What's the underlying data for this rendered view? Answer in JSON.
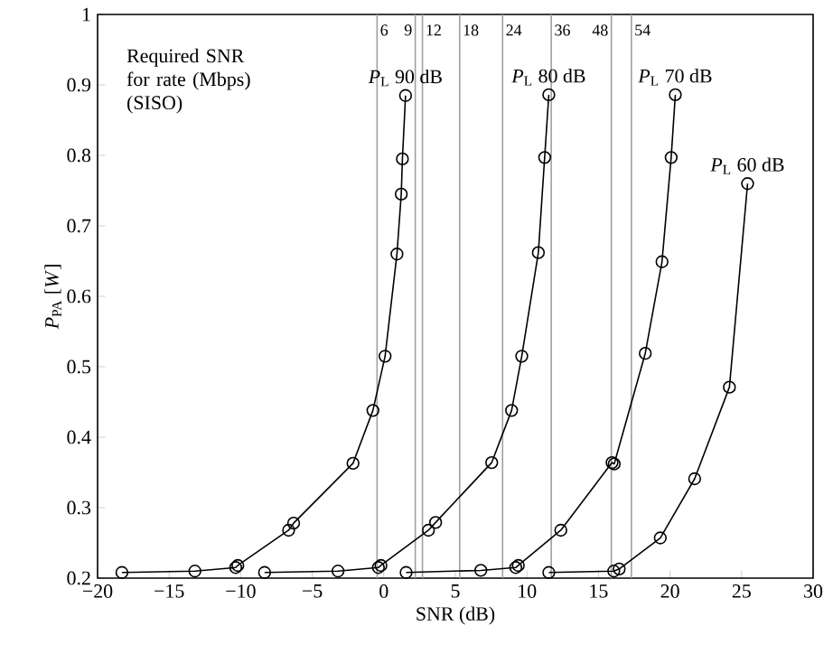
{
  "chart_data": {
    "type": "line",
    "xlabel": "SNR (dB)",
    "ylabel": "*P*$_{PA}$ [*W*]",
    "xlim": [
      -20,
      30
    ],
    "ylim": [
      0.2,
      1
    ],
    "xticks": [
      {
        "value": -20,
        "label": "−20"
      },
      {
        "value": -15,
        "label": "−15"
      },
      {
        "value": -10,
        "label": "−10"
      },
      {
        "value": -5,
        "label": "−5"
      },
      0,
      5,
      10,
      15,
      20,
      25,
      30
    ],
    "yticks": [
      0.2,
      0.3,
      0.4,
      0.5,
      0.6,
      0.7,
      0.8,
      0.9,
      1
    ],
    "marker": "circle",
    "line_style": "solid",
    "series": [
      {
        "color": "#000000",
        "x": [
          -18.3,
          -13.2,
          -10.35,
          -10.2,
          -6.65,
          -6.3,
          -2.15,
          -0.76,
          0.09,
          0.92,
          1.22,
          1.3,
          1.52
        ],
        "values": [
          0.208,
          0.21,
          0.215,
          0.218,
          0.268,
          0.278,
          0.363,
          0.438,
          0.515,
          0.66,
          0.745,
          0.795,
          0.885
        ]
      },
      {
        "color": "#000000",
        "x": [
          -8.33,
          -3.2,
          -0.38,
          -0.2,
          3.12,
          3.62,
          7.54,
          8.93,
          9.64,
          10.8,
          11.24,
          11.53
        ],
        "values": [
          0.208,
          0.21,
          0.215,
          0.218,
          0.268,
          0.279,
          0.364,
          0.438,
          0.515,
          0.662,
          0.797,
          0.886
        ]
      },
      {
        "color": "#000000",
        "x": [
          1.56,
          6.78,
          9.22,
          9.4,
          12.37,
          15.95,
          16.1,
          18.27,
          19.44,
          20.08,
          20.37
        ],
        "values": [
          0.208,
          0.211,
          0.215,
          0.218,
          0.268,
          0.364,
          0.362,
          0.519,
          0.649,
          0.797,
          0.886
        ]
      },
      {
        "color": "#000000",
        "x": [
          11.53,
          16.07,
          16.45,
          19.32,
          21.72,
          24.15,
          25.42
        ],
        "values": [
          0.208,
          0.21,
          0.213,
          0.257,
          0.341,
          0.471,
          0.76
        ]
      }
    ],
    "ref_lines": [
      {
        "axis": "x",
        "value": -0.47,
        "color": "#a0a0a0"
      },
      {
        "axis": "x",
        "value": 2.2,
        "color": "#a0a0a0"
      },
      {
        "axis": "x",
        "value": 2.7,
        "color": "#a0a0a0"
      },
      {
        "axis": "x",
        "value": 5.3,
        "color": "#a0a0a0"
      },
      {
        "axis": "x",
        "value": 8.3,
        "color": "#a0a0a0"
      },
      {
        "axis": "x",
        "value": 11.7,
        "color": "#a0a0a0"
      },
      {
        "axis": "x",
        "value": 15.9,
        "color": "#a0a0a0"
      },
      {
        "axis": "x",
        "value": 17.3,
        "color": "#a0a0a0"
      }
    ],
    "annotations": [
      "Required SNR for rate (Mbps) (SISO)",
      {
        "text": "6",
        "x": -0.47,
        "y": 1
      },
      {
        "text": "9",
        "x": 2.2,
        "y": 1
      },
      {
        "text": "12",
        "x": 2.7,
        "y": 1
      },
      {
        "text": "18",
        "x": 5.3,
        "y": 1
      },
      {
        "text": "24",
        "x": 8.3,
        "y": 1
      },
      {
        "text": "36",
        "x": 11.7,
        "y": 1
      },
      {
        "text": "48",
        "x": 15.9,
        "y": 1
      },
      {
        "text": "54",
        "x": 17.3,
        "y": 1
      },
      {
        "text": "*P*$_{L}$ 90 dB",
        "x": 1.52,
        "y": 0.885
      },
      {
        "text": "*P*$_{L}$ 80 dB",
        "x": 11.53,
        "y": 0.886
      },
      {
        "text": "*P*$_{L}$ 70 dB",
        "x": 20.37,
        "y": 0.886
      },
      {
        "text": "*P*$_{L}$ 60 dB",
        "x": 25.42,
        "y": 0.76
      }
    ]
  }
}
